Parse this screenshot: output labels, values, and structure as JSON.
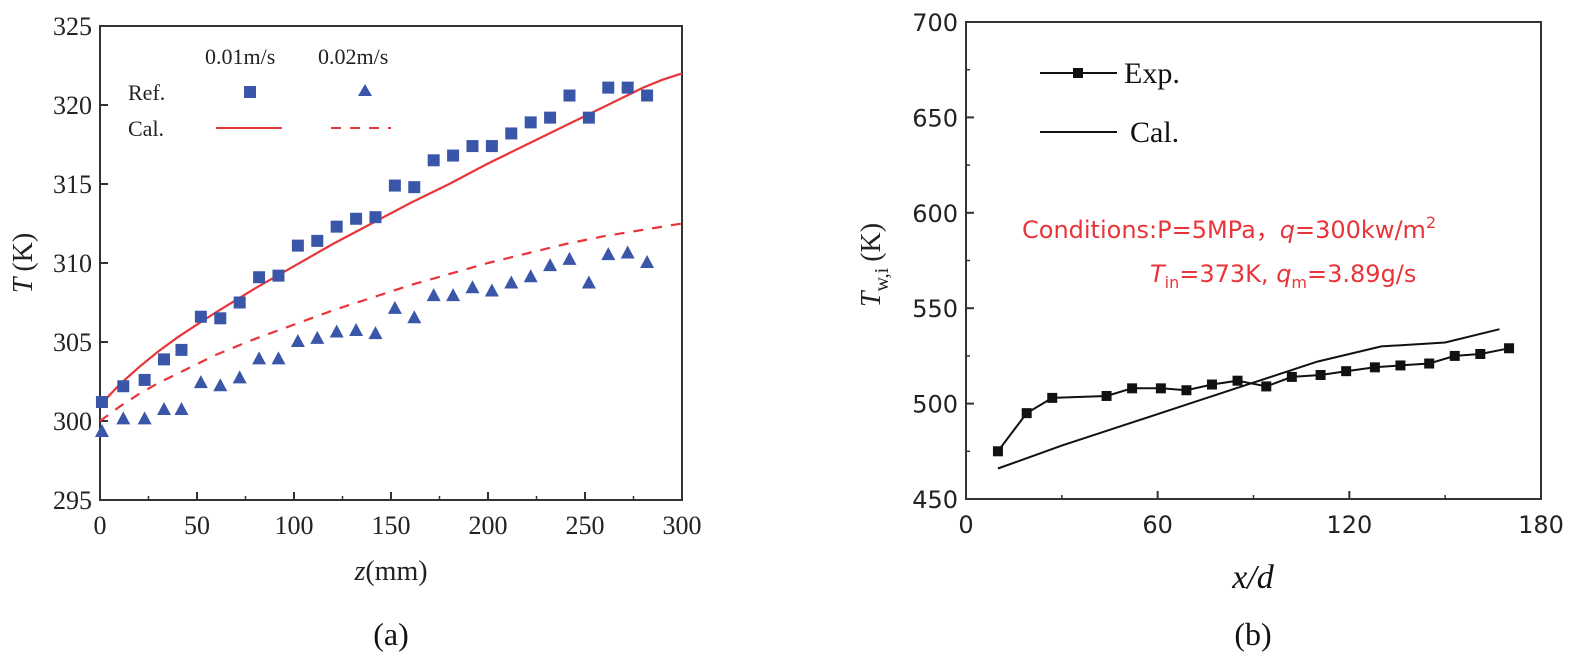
{
  "chart_data": [
    {
      "type": "scatter+line",
      "panel_label": "(a)",
      "xlabel_var": "z",
      "xlabel_unit": "(mm)",
      "ylabel_var": "T",
      "ylabel_unit": "(K)",
      "xlim": [
        0,
        300
      ],
      "ylim": [
        295,
        325
      ],
      "xticks": [
        0,
        50,
        100,
        150,
        200,
        250,
        300
      ],
      "yticks": [
        295,
        300,
        305,
        310,
        315,
        320,
        325
      ],
      "legend": {
        "col1": "0.01m/s",
        "col2": "0.02m/s",
        "row_ref": "Ref.",
        "row_cal": "Cal."
      },
      "colors": {
        "marker": "#3a56a8",
        "line": "#e8353a"
      },
      "series": [
        {
          "name": "Ref. 0.01m/s",
          "marker": "square",
          "x": [
            1,
            12,
            23,
            33,
            42,
            52,
            62,
            72,
            82,
            92,
            102,
            112,
            122,
            132,
            142,
            152,
            162,
            172,
            182,
            192,
            202,
            212,
            222,
            232,
            242,
            252,
            262,
            272,
            282
          ],
          "y": [
            301.2,
            302.2,
            302.6,
            303.9,
            304.5,
            306.6,
            306.5,
            307.5,
            309.1,
            309.2,
            311.1,
            311.4,
            312.3,
            312.8,
            312.9,
            314.9,
            314.8,
            316.5,
            316.8,
            317.4,
            317.4,
            318.2,
            318.9,
            319.2,
            320.6,
            319.2,
            321.1,
            321.1,
            320.6
          ]
        },
        {
          "name": "Ref. 0.02m/s",
          "marker": "triangle",
          "x": [
            1,
            12,
            23,
            33,
            42,
            52,
            62,
            72,
            82,
            92,
            102,
            112,
            122,
            132,
            142,
            152,
            162,
            172,
            182,
            192,
            202,
            212,
            222,
            232,
            242,
            252,
            262,
            272,
            282
          ],
          "y": [
            299.3,
            300.1,
            300.1,
            300.7,
            300.7,
            302.4,
            302.2,
            302.7,
            303.9,
            303.9,
            305.0,
            305.2,
            305.6,
            305.7,
            305.5,
            307.1,
            306.5,
            307.9,
            307.9,
            308.4,
            308.2,
            308.7,
            309.1,
            309.8,
            310.2,
            308.7,
            310.5,
            310.6,
            310.0
          ]
        },
        {
          "name": "Cal. 0.01m/s",
          "line": "solid",
          "x": [
            0,
            10,
            20,
            30,
            40,
            50,
            60,
            80,
            100,
            120,
            140,
            160,
            180,
            200,
            220,
            240,
            260,
            280,
            290,
            300
          ],
          "y": [
            301.0,
            302.3,
            303.4,
            304.4,
            305.3,
            306.1,
            306.9,
            308.4,
            309.8,
            311.2,
            312.5,
            313.8,
            315.0,
            316.3,
            317.5,
            318.7,
            319.9,
            321.1,
            321.6,
            322.0
          ]
        },
        {
          "name": "Cal. 0.02m/s",
          "line": "dashed",
          "x": [
            0,
            10,
            20,
            30,
            40,
            50,
            60,
            80,
            100,
            120,
            140,
            160,
            180,
            200,
            220,
            240,
            260,
            280,
            300
          ],
          "y": [
            300.0,
            300.9,
            301.7,
            302.4,
            303.0,
            303.6,
            304.2,
            305.2,
            306.1,
            307.0,
            307.8,
            308.6,
            309.3,
            310.0,
            310.6,
            311.2,
            311.7,
            312.1,
            312.5
          ]
        }
      ]
    },
    {
      "type": "line",
      "panel_label": "(b)",
      "xlabel": "x/d",
      "ylabel_main": "T",
      "ylabel_sub": "w,i",
      "ylabel_unit": "(K)",
      "xlim": [
        0,
        180
      ],
      "ylim": [
        450,
        700
      ],
      "xticks": [
        0,
        60,
        120,
        180
      ],
      "yticks": [
        450,
        500,
        550,
        600,
        650,
        700
      ],
      "legend": {
        "exp": "Exp.",
        "cal": "Cal."
      },
      "conditions": {
        "line1_prefix": "Conditions:P=5MPa，",
        "line1_q": "q",
        "line1_value": "=300kw/m",
        "line1_sup": "2",
        "line2_T": "T",
        "line2_T_sub": "in",
        "line2_T_value": "=373K,  ",
        "line2_q": "q",
        "line2_q_sub": "m",
        "line2_q_value": "=3.89g/s"
      },
      "colors": {
        "line": "#111111",
        "conditions": "#e8353a"
      },
      "series": [
        {
          "name": "Exp.",
          "marker": "square",
          "x": [
            10,
            19,
            27,
            44,
            52,
            61,
            69,
            77,
            85,
            94,
            102,
            111,
            119,
            128,
            136,
            145,
            153,
            161,
            170
          ],
          "y": [
            475,
            495,
            503,
            504,
            508,
            508,
            507,
            510,
            512,
            509,
            514,
            515,
            517,
            519,
            520,
            521,
            525,
            526,
            529
          ]
        },
        {
          "name": "Cal.",
          "line": "solid",
          "x": [
            10,
            30,
            50,
            70,
            90,
            110,
            130,
            150,
            167
          ],
          "y": [
            466,
            478,
            489,
            500,
            511,
            522,
            530,
            532,
            539
          ]
        }
      ]
    }
  ]
}
